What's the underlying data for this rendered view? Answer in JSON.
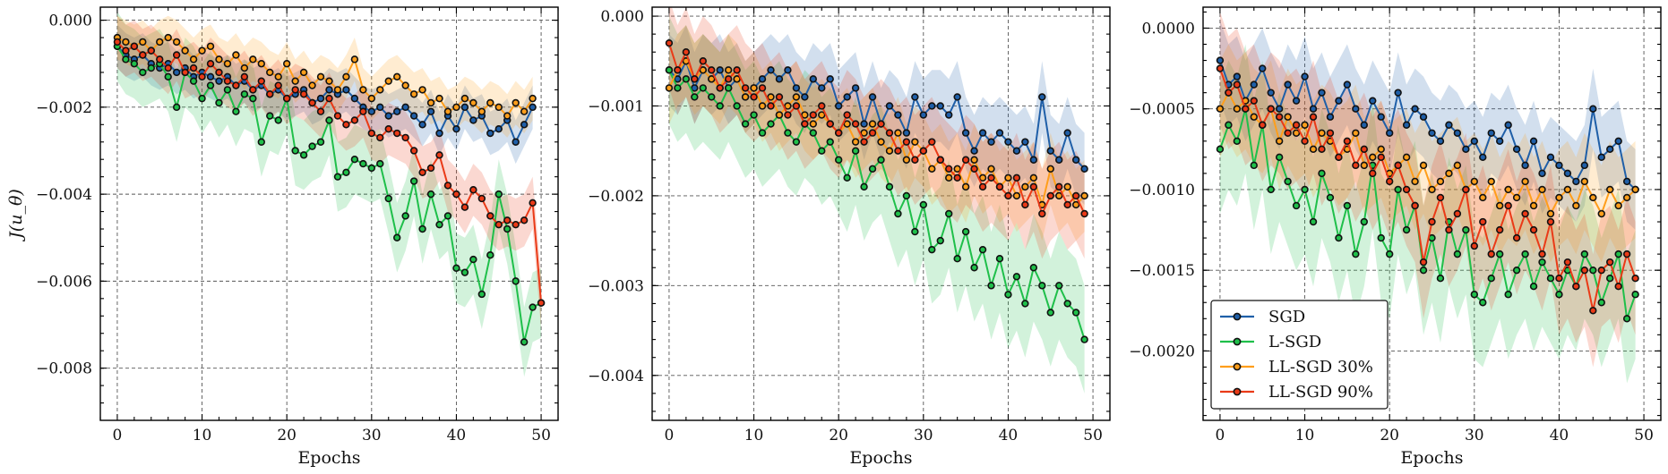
{
  "colors": {
    "SGD": "#1f5fa8",
    "L-SGD": "#1fbf4a",
    "LL-SGD 30%": "#ff9e1b",
    "LL-SGD 90%": "#ea3a17"
  },
  "legend": [
    "SGD",
    "L-SGD",
    "LL-SGD 30%",
    "LL-SGD 90%"
  ],
  "chart_data": [
    {
      "type": "line",
      "xlabel": "Epochs",
      "ylabel": "J(u_θ)",
      "xlim": [
        -2,
        52
      ],
      "ylim": [
        -0.0092,
        0.0003
      ],
      "xticks": [
        0,
        10,
        20,
        30,
        40,
        50
      ],
      "yticks": [
        -0.008,
        -0.006,
        -0.004,
        -0.002,
        0.0
      ],
      "ytick_labels": [
        "−0.008",
        "−0.006",
        "−0.004",
        "−0.002",
        "0.000"
      ],
      "grid": true,
      "series": [
        {
          "name": "SGD",
          "band": 0.0005,
          "values": [
            -0.0006,
            -0.0008,
            -0.0009,
            -0.0008,
            -0.001,
            -0.0011,
            -0.001,
            -0.0012,
            -0.0011,
            -0.0013,
            -0.0012,
            -0.0013,
            -0.0014,
            -0.0013,
            -0.0015,
            -0.0014,
            -0.0016,
            -0.0015,
            -0.0017,
            -0.0016,
            -0.0018,
            -0.0017,
            -0.0016,
            -0.0019,
            -0.0018,
            -0.0016,
            -0.0017,
            -0.0016,
            -0.0018,
            -0.002,
            -0.0021,
            -0.002,
            -0.0022,
            -0.0021,
            -0.002,
            -0.0022,
            -0.0024,
            -0.0021,
            -0.0026,
            -0.0022,
            -0.0025,
            -0.002,
            -0.0023,
            -0.0022,
            -0.0026,
            -0.0025,
            -0.0023,
            -0.0028,
            -0.0024,
            -0.002
          ]
        },
        {
          "name": "L-SGD",
          "band": 0.0008,
          "values": [
            -0.0006,
            -0.0009,
            -0.001,
            -0.0012,
            -0.0011,
            -0.001,
            -0.0013,
            -0.002,
            -0.0012,
            -0.0014,
            -0.0018,
            -0.0015,
            -0.0019,
            -0.0016,
            -0.0021,
            -0.0017,
            -0.0018,
            -0.0028,
            -0.0022,
            -0.0023,
            -0.0018,
            -0.003,
            -0.0031,
            -0.0029,
            -0.0028,
            -0.0023,
            -0.0036,
            -0.0035,
            -0.0032,
            -0.0033,
            -0.0034,
            -0.0033,
            -0.0041,
            -0.005,
            -0.0045,
            -0.0037,
            -0.0048,
            -0.004,
            -0.0047,
            -0.0045,
            -0.0057,
            -0.0058,
            -0.0055,
            -0.0063,
            -0.0054,
            -0.004,
            -0.0048,
            -0.006,
            -0.0074,
            -0.0066,
            -0.0065
          ]
        },
        {
          "name": "LL-SGD 30%",
          "band": 0.0005,
          "values": [
            -0.0004,
            -0.0005,
            -0.0006,
            -0.0005,
            -0.0007,
            -0.0005,
            -0.0004,
            -0.0005,
            -0.0007,
            -0.0009,
            -0.0007,
            -0.0006,
            -0.0009,
            -0.001,
            -0.0008,
            -0.0011,
            -0.0009,
            -0.001,
            -0.0012,
            -0.0013,
            -0.001,
            -0.0014,
            -0.0012,
            -0.0015,
            -0.0013,
            -0.0014,
            -0.0016,
            -0.0013,
            -0.0009,
            -0.0016,
            -0.0018,
            -0.0016,
            -0.0014,
            -0.0013,
            -0.0015,
            -0.0017,
            -0.0016,
            -0.0019,
            -0.0018,
            -0.0021,
            -0.002,
            -0.0018,
            -0.0019,
            -0.0021,
            -0.0019,
            -0.002,
            -0.0022,
            -0.0019,
            -0.0021,
            -0.0018
          ]
        },
        {
          "name": "LL-SGD 90%",
          "band": 0.0006,
          "values": [
            -0.0005,
            -0.0007,
            -0.0006,
            -0.0008,
            -0.0007,
            -0.0009,
            -0.0011,
            -0.0008,
            -0.0012,
            -0.0011,
            -0.0013,
            -0.001,
            -0.0012,
            -0.0014,
            -0.0015,
            -0.0013,
            -0.0016,
            -0.0014,
            -0.0017,
            -0.0015,
            -0.0018,
            -0.0016,
            -0.0017,
            -0.0019,
            -0.0021,
            -0.0018,
            -0.0022,
            -0.0024,
            -0.0023,
            -0.0021,
            -0.0026,
            -0.0027,
            -0.0025,
            -0.0026,
            -0.0027,
            -0.003,
            -0.0035,
            -0.0034,
            -0.0031,
            -0.0038,
            -0.004,
            -0.0043,
            -0.0039,
            -0.0041,
            -0.0045,
            -0.0047,
            -0.0046,
            -0.0047,
            -0.0046,
            -0.0042,
            -0.0065
          ]
        }
      ]
    },
    {
      "type": "line",
      "xlabel": "Epochs",
      "ylabel": "",
      "xlim": [
        -2,
        52
      ],
      "ylim": [
        -0.0045,
        0.0001
      ],
      "xticks": [
        0,
        10,
        20,
        30,
        40,
        50
      ],
      "yticks": [
        -0.004,
        -0.003,
        -0.002,
        -0.001,
        0.0
      ],
      "ytick_labels": [
        "−0.004",
        "−0.003",
        "−0.002",
        "−0.001",
        "0.000"
      ],
      "grid": true,
      "series": [
        {
          "name": "SGD",
          "band": 0.0004,
          "values": [
            -0.0006,
            -0.0007,
            -0.0005,
            -0.0008,
            -0.0006,
            -0.0007,
            -0.0006,
            -0.0008,
            -0.0007,
            -0.0009,
            -0.0008,
            -0.0007,
            -0.0006,
            -0.0007,
            -0.0006,
            -0.0008,
            -0.0009,
            -0.0007,
            -0.0008,
            -0.0007,
            -0.001,
            -0.0009,
            -0.0008,
            -0.0012,
            -0.0009,
            -0.0012,
            -0.001,
            -0.0011,
            -0.0013,
            -0.0009,
            -0.0011,
            -0.001,
            -0.001,
            -0.0011,
            -0.0009,
            -0.0013,
            -0.0015,
            -0.0013,
            -0.0014,
            -0.0013,
            -0.0014,
            -0.0015,
            -0.0014,
            -0.0016,
            -0.0009,
            -0.0015,
            -0.0016,
            -0.0013,
            -0.0016,
            -0.0017
          ]
        },
        {
          "name": "L-SGD",
          "band": 0.0006,
          "values": [
            -0.0006,
            -0.0008,
            -0.0007,
            -0.0009,
            -0.0008,
            -0.0009,
            -0.001,
            -0.0008,
            -0.001,
            -0.0012,
            -0.0011,
            -0.0013,
            -0.0012,
            -0.0011,
            -0.0013,
            -0.0014,
            -0.0012,
            -0.0013,
            -0.0015,
            -0.0014,
            -0.0016,
            -0.0018,
            -0.0015,
            -0.0019,
            -0.0017,
            -0.0016,
            -0.0019,
            -0.0022,
            -0.002,
            -0.0024,
            -0.0021,
            -0.0026,
            -0.0025,
            -0.0022,
            -0.0027,
            -0.0024,
            -0.0028,
            -0.0026,
            -0.003,
            -0.0027,
            -0.0031,
            -0.0029,
            -0.0032,
            -0.0028,
            -0.003,
            -0.0033,
            -0.003,
            -0.0032,
            -0.0033,
            -0.0036
          ]
        },
        {
          "name": "LL-SGD 30%",
          "band": 0.0004,
          "values": [
            -0.0008,
            -0.0006,
            -0.0005,
            -0.0007,
            -0.0006,
            -0.0007,
            -0.0008,
            -0.0006,
            -0.0007,
            -0.0009,
            -0.0008,
            -0.001,
            -0.0009,
            -0.0011,
            -0.001,
            -0.0009,
            -0.0011,
            -0.0012,
            -0.0011,
            -0.0012,
            -0.0013,
            -0.0012,
            -0.0014,
            -0.0013,
            -0.0012,
            -0.0014,
            -0.0015,
            -0.0013,
            -0.0016,
            -0.0014,
            -0.0015,
            -0.0017,
            -0.0016,
            -0.0018,
            -0.0017,
            -0.0019,
            -0.0016,
            -0.0018,
            -0.0017,
            -0.0019,
            -0.0018,
            -0.002,
            -0.0019,
            -0.0018,
            -0.0021,
            -0.0017,
            -0.002,
            -0.0019,
            -0.0021,
            -0.002
          ]
        },
        {
          "name": "LL-SGD 90%",
          "band": 0.0005,
          "values": [
            -0.0003,
            -0.0006,
            -0.0004,
            -0.0007,
            -0.0005,
            -0.0006,
            -0.0008,
            -0.0007,
            -0.0006,
            -0.0008,
            -0.0009,
            -0.0008,
            -0.001,
            -0.0009,
            -0.0011,
            -0.001,
            -0.0012,
            -0.0011,
            -0.001,
            -0.0012,
            -0.0013,
            -0.0011,
            -0.0012,
            -0.0014,
            -0.0013,
            -0.0012,
            -0.0013,
            -0.0015,
            -0.0014,
            -0.0016,
            -0.0015,
            -0.0014,
            -0.0016,
            -0.0017,
            -0.0018,
            -0.0016,
            -0.0017,
            -0.0019,
            -0.0018,
            -0.0019,
            -0.002,
            -0.0018,
            -0.0021,
            -0.0019,
            -0.0022,
            -0.002,
            -0.0019,
            -0.0021,
            -0.002,
            -0.0022
          ]
        }
      ]
    },
    {
      "type": "line",
      "xlabel": "Epochs",
      "ylabel": "",
      "xlim": [
        -2,
        52
      ],
      "ylim": [
        -0.00243,
        0.00013
      ],
      "xticks": [
        0,
        10,
        20,
        30,
        40,
        50
      ],
      "yticks": [
        -0.002,
        -0.0015,
        -0.001,
        -0.0005,
        0.0
      ],
      "ytick_labels": [
        "−0.0020",
        "−0.0015",
        "−0.0010",
        "−0.0005",
        "0.0000"
      ],
      "grid": true,
      "legend": "lower-left",
      "series": [
        {
          "name": "SGD",
          "band": 0.00025,
          "values": [
            -0.0002,
            -0.00035,
            -0.0003,
            -0.00045,
            -0.00035,
            -0.00025,
            -0.0004,
            -0.0005,
            -0.00035,
            -0.00045,
            -0.0003,
            -0.0005,
            -0.0004,
            -0.00055,
            -0.00045,
            -0.00035,
            -0.0005,
            -0.0006,
            -0.00045,
            -0.00055,
            -0.00065,
            -0.0004,
            -0.0006,
            -0.0005,
            -0.00055,
            -0.00065,
            -0.0007,
            -0.0006,
            -0.00065,
            -0.00075,
            -0.0007,
            -0.0008,
            -0.00065,
            -0.0007,
            -0.0006,
            -0.00075,
            -0.00085,
            -0.0007,
            -0.0009,
            -0.0008,
            -0.00085,
            -0.0009,
            -0.00095,
            -0.00085,
            -0.0005,
            -0.0008,
            -0.00075,
            -0.0007,
            -0.00095,
            -0.001
          ]
        },
        {
          "name": "L-SGD",
          "band": 0.0004,
          "values": [
            -0.00075,
            -0.0006,
            -0.0007,
            -0.0005,
            -0.00085,
            -0.0006,
            -0.001,
            -0.0008,
            -0.00095,
            -0.0011,
            -0.001,
            -0.0012,
            -0.0009,
            -0.00105,
            -0.0013,
            -0.0011,
            -0.0014,
            -0.0012,
            -0.00085,
            -0.0013,
            -0.0014,
            -0.001,
            -0.00125,
            -0.0011,
            -0.0015,
            -0.0013,
            -0.00155,
            -0.0012,
            -0.0014,
            -0.00125,
            -0.00165,
            -0.0017,
            -0.00155,
            -0.0014,
            -0.00165,
            -0.0015,
            -0.0014,
            -0.0016,
            -0.00145,
            -0.00155,
            -0.00165,
            -0.0015,
            -0.0016,
            -0.0014,
            -0.0015,
            -0.0017,
            -0.00155,
            -0.0014,
            -0.0018,
            -0.00165
          ]
        },
        {
          "name": "LL-SGD 30%",
          "band": 0.0003,
          "values": [
            -0.0005,
            -0.0004,
            -0.0005,
            -0.00045,
            -0.00055,
            -0.0006,
            -0.0005,
            -0.0007,
            -0.00055,
            -0.00065,
            -0.0006,
            -0.00075,
            -0.00065,
            -0.0007,
            -0.0008,
            -0.00075,
            -0.00065,
            -0.00085,
            -0.0008,
            -0.00075,
            -0.0009,
            -0.00085,
            -0.0008,
            -0.00095,
            -0.00085,
            -0.001,
            -0.00095,
            -0.0009,
            -0.00085,
            -0.001,
            -0.00095,
            -0.00105,
            -0.00095,
            -0.0011,
            -0.001,
            -0.00105,
            -0.00095,
            -0.0011,
            -0.001,
            -0.00115,
            -0.00105,
            -0.001,
            -0.0011,
            -0.00095,
            -0.00105,
            -0.00115,
            -0.001,
            -0.0011,
            -0.00105,
            -0.001
          ]
        },
        {
          "name": "LL-SGD 90%",
          "band": 0.00035,
          "values": [
            -0.00025,
            -0.0004,
            -0.00035,
            -0.0005,
            -0.00045,
            -0.0006,
            -0.0005,
            -0.00055,
            -0.00065,
            -0.0006,
            -0.0007,
            -0.00055,
            -0.00075,
            -0.00065,
            -0.0008,
            -0.0007,
            -0.00085,
            -0.00075,
            -0.0009,
            -0.0008,
            -0.00095,
            -0.00085,
            -0.001,
            -0.0011,
            -0.00145,
            -0.0012,
            -0.00105,
            -0.00125,
            -0.00115,
            -0.001,
            -0.00135,
            -0.0012,
            -0.0014,
            -0.00125,
            -0.0011,
            -0.0013,
            -0.00115,
            -0.00125,
            -0.0014,
            -0.0012,
            -0.00155,
            -0.00145,
            -0.0016,
            -0.0015,
            -0.00175,
            -0.0015,
            -0.00145,
            -0.0016,
            -0.0014,
            -0.00155
          ]
        }
      ]
    }
  ]
}
